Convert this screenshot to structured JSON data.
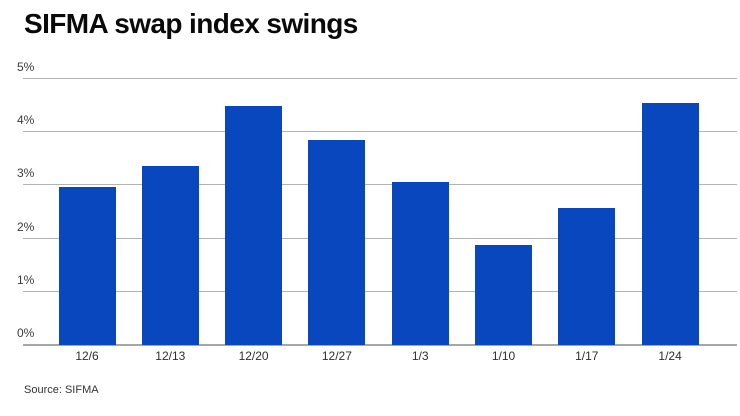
{
  "title": "SIFMA swap index swings",
  "source": "Source: SIFMA",
  "colors": {
    "bar": "#0847BD",
    "gridline": "#B3B3B3",
    "axis_line": "#A6A6A6",
    "tick_label": "#3B3B3B",
    "title": "#0A0A0A",
    "background": "#FFFFFF"
  },
  "chart_data": {
    "type": "bar",
    "title": "SIFMA swap index swings",
    "categories": [
      "12/6",
      "12/13",
      "12/20",
      "12/27",
      "1/3",
      "1/10",
      "1/17",
      "1/24"
    ],
    "values": [
      2.97,
      3.37,
      4.5,
      3.86,
      3.07,
      1.88,
      2.57,
      4.55
    ],
    "xlabel": "",
    "ylabel": "",
    "ylim": [
      0,
      5
    ],
    "yticks": [
      0,
      1,
      2,
      3,
      4,
      5
    ],
    "ytick_labels": [
      "0%",
      "1%",
      "2%",
      "3%",
      "4%",
      "5%"
    ],
    "grid": true,
    "legend": false,
    "bar_color": "#0847BD",
    "source": "Source: SIFMA"
  }
}
